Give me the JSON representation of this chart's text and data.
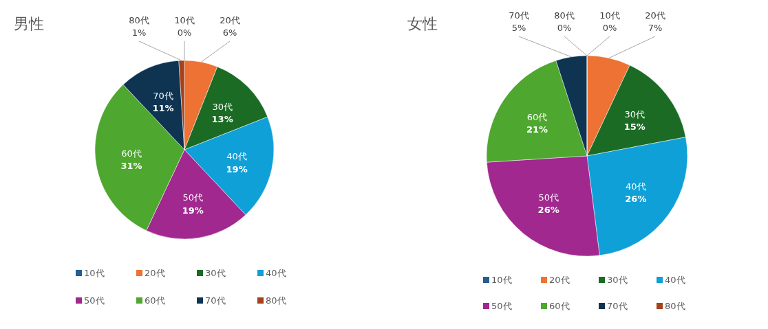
{
  "chart_data": [
    {
      "type": "pie",
      "title": "男性",
      "categories": [
        "10代",
        "20代",
        "30代",
        "40代",
        "50代",
        "60代",
        "70代",
        "80代"
      ],
      "values": [
        0,
        6,
        13,
        19,
        19,
        31,
        11,
        1
      ],
      "value_labels": [
        "0%",
        "6%",
        "13%",
        "19%",
        "19%",
        "31%",
        "11%",
        "1%"
      ],
      "colors": [
        "#255e91",
        "#ed7233",
        "#1b6b24",
        "#10a0d8",
        "#a0288f",
        "#4ea72e",
        "#0e3452",
        "#a5421a"
      ],
      "legend": "bottom"
    },
    {
      "type": "pie",
      "title": "女性",
      "categories": [
        "10代",
        "20代",
        "30代",
        "40代",
        "50代",
        "60代",
        "70代",
        "80代"
      ],
      "values": [
        0,
        7,
        15,
        26,
        26,
        21,
        5,
        0
      ],
      "value_labels": [
        "0%",
        "7%",
        "15%",
        "26%",
        "26%",
        "21%",
        "5%",
        "0%"
      ],
      "colors": [
        "#255e91",
        "#ed7233",
        "#1b6b24",
        "#10a0d8",
        "#a0288f",
        "#4ea72e",
        "#0e3452",
        "#a5421a"
      ],
      "legend": "bottom"
    }
  ]
}
